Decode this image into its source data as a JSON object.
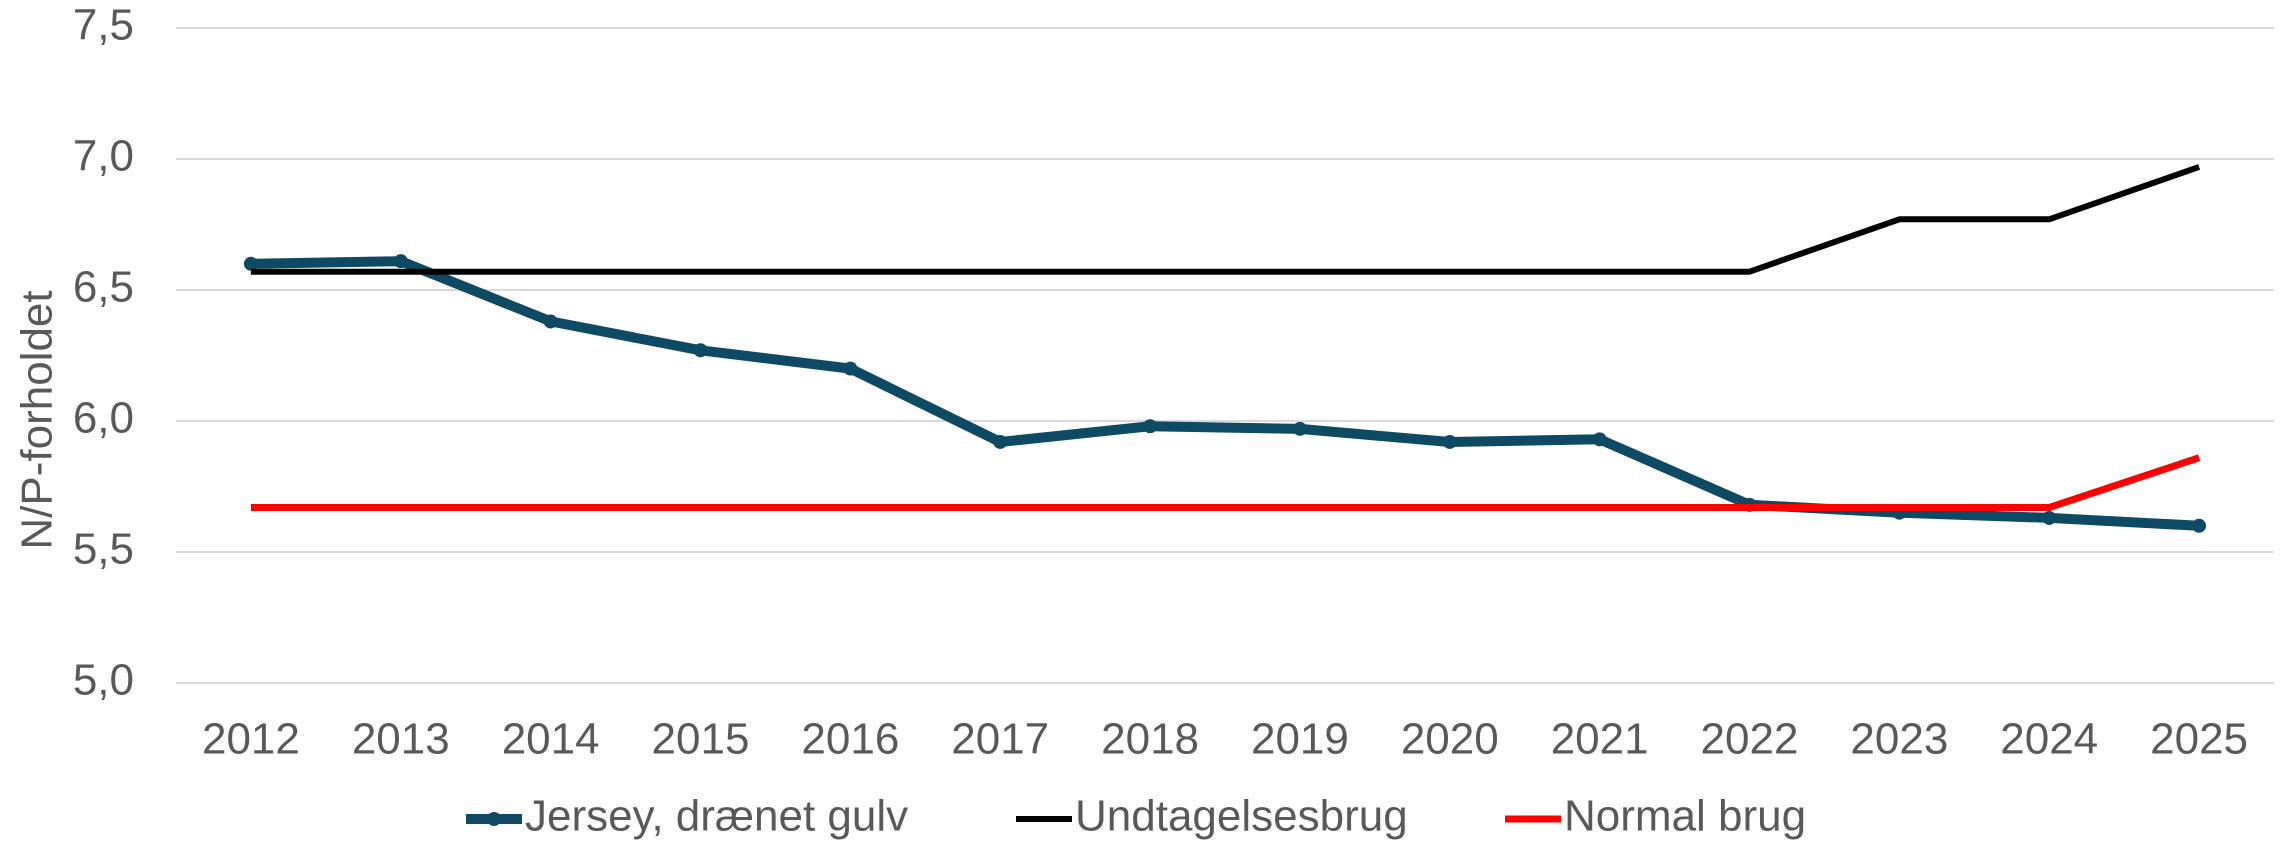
{
  "chart_data": {
    "type": "line",
    "y_label": "N/P-forholdet",
    "categories": [
      "2012",
      "2013",
      "2014",
      "2015",
      "2016",
      "2017",
      "2018",
      "2019",
      "2020",
      "2021",
      "2022",
      "2023",
      "2024",
      "2025"
    ],
    "series": [
      {
        "name": "Jersey, drænet gulv",
        "color": "#0e4a63",
        "markers": true,
        "values": [
          6.6,
          6.61,
          6.38,
          6.27,
          6.2,
          5.92,
          5.98,
          5.97,
          5.92,
          5.93,
          5.68,
          5.65,
          5.63,
          5.6
        ]
      },
      {
        "name": "Undtagelsesbrug",
        "color": "#000000",
        "markers": false,
        "values": [
          6.57,
          6.57,
          6.57,
          6.57,
          6.57,
          6.57,
          6.57,
          6.57,
          6.57,
          6.57,
          6.57,
          6.77,
          6.77,
          6.97
        ]
      },
      {
        "name": "Normal brug",
        "color": "#ff0000",
        "markers": false,
        "values": [
          5.67,
          5.67,
          5.67,
          5.67,
          5.67,
          5.67,
          5.67,
          5.67,
          5.67,
          5.67,
          5.67,
          5.67,
          5.67,
          5.86
        ]
      }
    ],
    "ylim": [
      5,
      7.5
    ],
    "yticks": [
      {
        "value": 5,
        "label": "5,0"
      },
      {
        "value": 5.5,
        "label": "5,5"
      },
      {
        "value": 6,
        "label": "6,0"
      },
      {
        "value": 6.5,
        "label": "6,5"
      },
      {
        "value": 7,
        "label": "7,0"
      },
      {
        "value": 7.5,
        "label": "7,5"
      }
    ],
    "grid": true,
    "legend": "bottom"
  }
}
